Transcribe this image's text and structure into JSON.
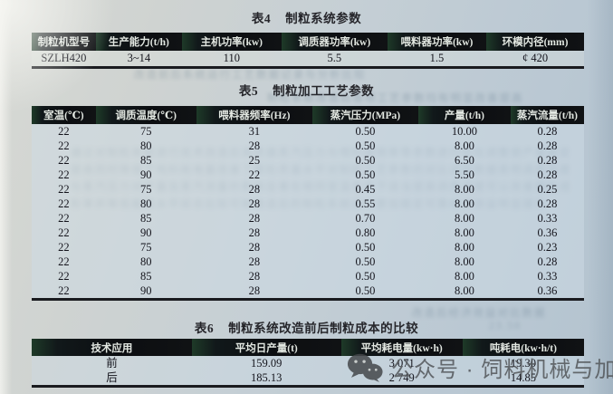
{
  "tables": [
    {
      "no": "表4",
      "name": "制粒系统参数",
      "headers": [
        "制粒机型号",
        "生产能力(t/h)",
        "主机功率(kw)",
        "调质器功率(kw)",
        "喂料器功率(kw)",
        "环模内径(mm)"
      ],
      "rows": [
        [
          "SZLH420",
          "3~14",
          "110",
          "5.5",
          "1.5",
          "¢ 420"
        ]
      ]
    },
    {
      "no": "表5",
      "name": "制粒加工工艺参数",
      "headers": [
        "室温(℃)",
        "调质温度(℃)",
        "喂料器频率(Hz)",
        "蒸汽压力(MPa)",
        "产量(t/h)",
        "蒸汽流量(t/h)"
      ],
      "rows": [
        [
          "22",
          "75",
          "31",
          "0.50",
          "10.00",
          "0.28"
        ],
        [
          "22",
          "80",
          "28",
          "0.50",
          "8.00",
          "0.28"
        ],
        [
          "22",
          "85",
          "25",
          "0.50",
          "6.50",
          "0.28"
        ],
        [
          "22",
          "90",
          "22",
          "0.50",
          "5.50",
          "0.28"
        ],
        [
          "22",
          "75",
          "28",
          "0.45",
          "8.00",
          "0.25"
        ],
        [
          "22",
          "80",
          "28",
          "0.55",
          "8.00",
          "0.28"
        ],
        [
          "22",
          "85",
          "28",
          "0.70",
          "8.00",
          "0.33"
        ],
        [
          "22",
          "90",
          "28",
          "0.80",
          "8.00",
          "0.36"
        ],
        [
          "22",
          "75",
          "28",
          "0.50",
          "8.00",
          "0.23"
        ],
        [
          "22",
          "80",
          "28",
          "0.50",
          "8.00",
          "0.28"
        ],
        [
          "22",
          "85",
          "28",
          "0.50",
          "8.00",
          "0.33"
        ],
        [
          "22",
          "90",
          "28",
          "0.50",
          "8.00",
          "0.36"
        ]
      ]
    },
    {
      "no": "表6",
      "name": "制粒系统改造前后制粒成本的比较",
      "headers": [
        "技术应用",
        "平均日产量(t)",
        "平均耗电量(kw·h)",
        "吨耗电(kw·h/t)"
      ],
      "rows": [
        [
          "前",
          "159.09",
          "3 071",
          "19.30"
        ],
        [
          "后",
          "185.13",
          "2 749",
          "14.85"
        ]
      ]
    }
  ],
  "watermark": {
    "icon": "wechat-icon",
    "text": "公众号 · 饲料机械与加工"
  },
  "bleed_through": {
    "a": "改造前后系统运行工艺数据记录与分析比较",
    "b": "制粒系统改造后各项工艺参数均有明显改善提高",
    "c": "通过对制粒系统进行技术改造后调质器蒸汽压力与喂料器频率等参数进行优化调整使产量稳定提高同时降低了吨料耗电量改善了颗粒质量水平对制粒工艺参数的对比试验数据表明调质温度与蒸汽压力对产量及蒸汽流量的影响显著在相同室温条件下适当提高调质温度可以改善颗粒成形率并降低能耗水平综合比较可知改造后的制粒系统运行更加稳定可靠经济效益明显提升",
    "d": "改造后经济效益对比数据",
    "e": "23.50"
  }
}
